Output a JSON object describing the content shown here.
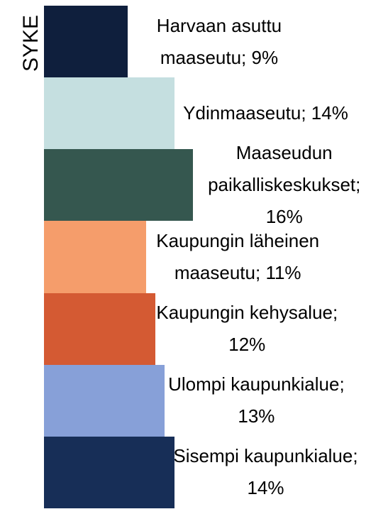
{
  "chart_data": {
    "type": "barh",
    "y_label": "SYKE",
    "values": [
      9,
      14,
      16,
      11,
      12,
      13,
      14
    ],
    "value_labels": [
      "Harvaan asuttu maaseutu; 9%",
      "Ydinmaaseutu; 14%",
      "Maaseudun paikalliskeskukset; 16%",
      "Kaupungin läheinen maaseutu; 11%",
      "Kaupungin kehysalue; 12%",
      "Ulompi kaupunkialue; 13%",
      "Sisempi kaupunkialue; 14%"
    ],
    "colors": [
      "#0f1f3d",
      "#c5dfe0",
      "#35574f",
      "#f59d6b",
      "#d45a33",
      "#87a0d8",
      "#172e57"
    ],
    "xlim": [
      0,
      37
    ]
  }
}
